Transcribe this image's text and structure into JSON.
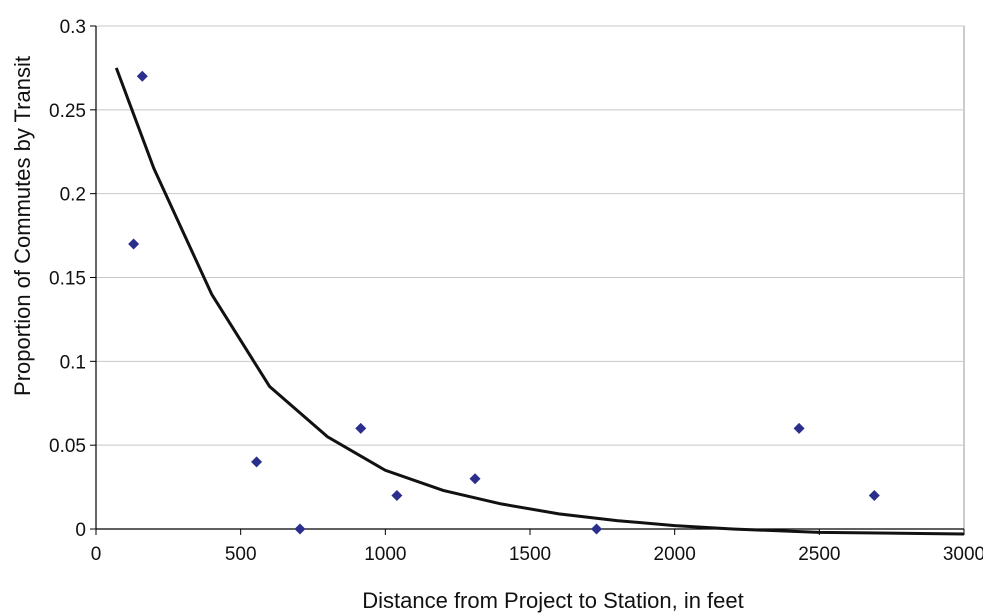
{
  "chart_data": {
    "type": "scatter",
    "title": "",
    "xlabel": "Distance from Project to Station, in feet",
    "ylabel": "Proportion of Commutes by Transit",
    "xlim": [
      0,
      3000
    ],
    "ylim": [
      0,
      0.3
    ],
    "x_ticks": [
      "0",
      "500",
      "1000",
      "1500",
      "2000",
      "2500",
      "3000"
    ],
    "y_ticks": [
      "0",
      "0.05",
      "0.1",
      "0.15",
      "0.2",
      "0.25",
      "0.3"
    ],
    "grid": "horizontal",
    "legend": "none",
    "series": [
      {
        "points": [
          {
            "x": 130,
            "y": 0.17
          },
          {
            "x": 160,
            "y": 0.27
          },
          {
            "x": 555,
            "y": 0.04
          },
          {
            "x": 705,
            "y": 0.0
          },
          {
            "x": 915,
            "y": 0.06
          },
          {
            "x": 1040,
            "y": 0.02
          },
          {
            "x": 1310,
            "y": 0.03
          },
          {
            "x": 1730,
            "y": 0.0
          },
          {
            "x": 2430,
            "y": 0.06
          },
          {
            "x": 2690,
            "y": 0.02
          }
        ],
        "color": "#2a2e8c"
      }
    ],
    "fit_curve": {
      "color": "#111111",
      "points": [
        {
          "x": 70,
          "y": 0.275
        },
        {
          "x": 200,
          "y": 0.215
        },
        {
          "x": 400,
          "y": 0.14
        },
        {
          "x": 600,
          "y": 0.085
        },
        {
          "x": 800,
          "y": 0.055
        },
        {
          "x": 1000,
          "y": 0.035
        },
        {
          "x": 1200,
          "y": 0.023
        },
        {
          "x": 1400,
          "y": 0.015
        },
        {
          "x": 1600,
          "y": 0.009
        },
        {
          "x": 1800,
          "y": 0.005
        },
        {
          "x": 2000,
          "y": 0.002
        },
        {
          "x": 2200,
          "y": 0.0
        },
        {
          "x": 2500,
          "y": -0.002
        },
        {
          "x": 3000,
          "y": -0.003
        }
      ]
    }
  }
}
